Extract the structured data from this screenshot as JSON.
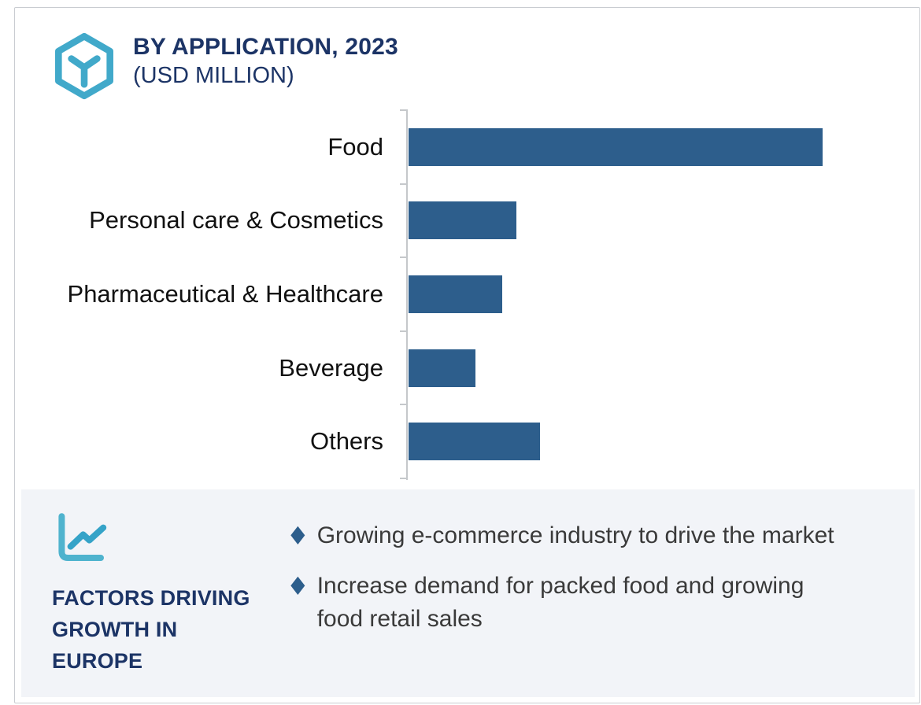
{
  "header": {
    "title": "BY APPLICATION, 2023",
    "subtitle": "(USD MILLION)"
  },
  "chart_data": {
    "type": "bar",
    "orientation": "horizontal",
    "title": "BY APPLICATION, 2023",
    "subtitle": "(USD MILLION)",
    "categories": [
      "Food",
      "Personal care & Cosmetics",
      "Pharmaceutical & Healthcare",
      "Beverage",
      "Others"
    ],
    "values_pct_of_max": [
      100,
      26,
      22.6,
      16.2,
      31.7
    ],
    "value_axis": "unlabeled (no tick values, no gridlines shown)",
    "gridlines": false,
    "legend": "none",
    "data_labels": "none",
    "bar_color": "#2D5E8C",
    "axis_color": "#C5C8CB"
  },
  "factors_panel": {
    "heading": "FACTORS DRIVING GROWTH IN EUROPE",
    "heading_lines": [
      "FACTORS DRIVING",
      "GROWTH IN",
      "EUROPE"
    ],
    "bullets": [
      "Growing e-commerce industry to drive the market",
      "Increase demand for packed food and growing food retail sales"
    ]
  },
  "icons": {
    "header_icon": "hexagon-cube-logo",
    "panel_icon": "trend-line-chart",
    "bullet_icon": "diamond",
    "bullet_glyph": "♦"
  },
  "colors": {
    "navy": "#1C3466",
    "bar_blue": "#2D5E8C",
    "teal": "#41A9CA",
    "teal_dark": "#35A3C8",
    "panel_bg": "#F2F4F8",
    "card_border": "#C9CCD1",
    "bullet_text": "#3A3A3A"
  }
}
